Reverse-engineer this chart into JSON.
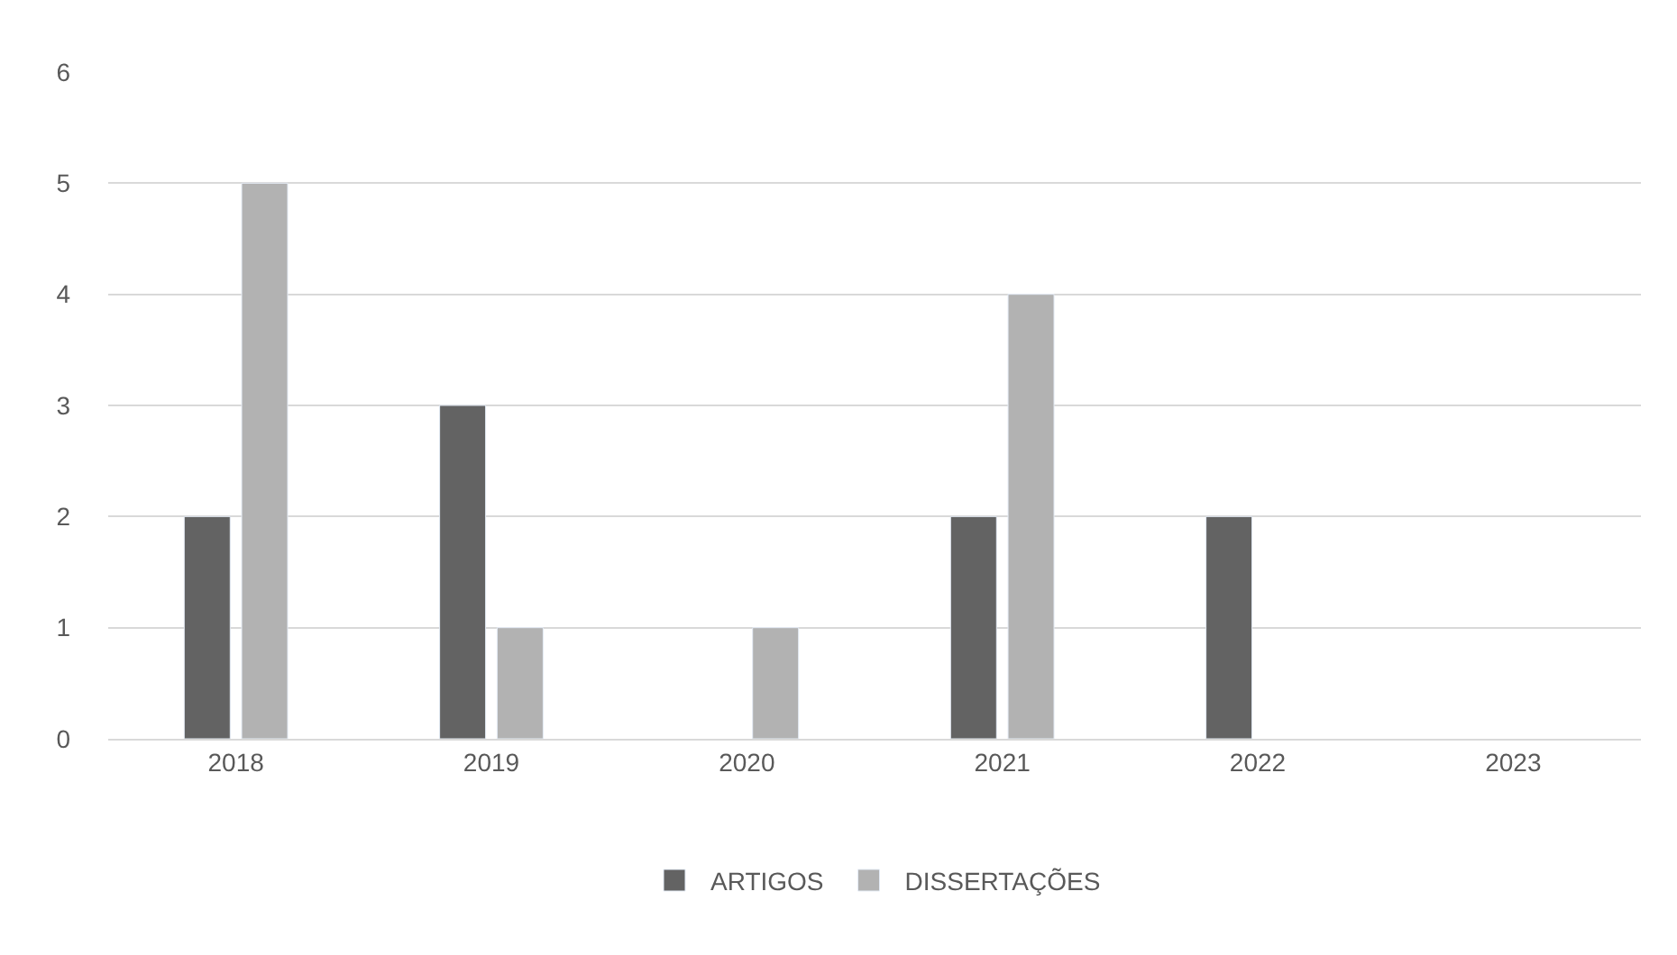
{
  "chart_data": {
    "type": "bar",
    "categories": [
      "2018",
      "2019",
      "2020",
      "2021",
      "2022",
      "2023"
    ],
    "series": [
      {
        "name": "ARTIGOS",
        "color": "#636363",
        "values": [
          2,
          3,
          null,
          2,
          2,
          null
        ]
      },
      {
        "name": "DISSERTAÇÕES",
        "color": "#b2b2b2",
        "values": [
          5,
          1,
          1,
          4,
          null,
          null
        ]
      }
    ],
    "ylim": [
      0,
      6
    ],
    "yticks": [
      0,
      1,
      2,
      3,
      4,
      5,
      6
    ],
    "grid": "y",
    "legend": "bottom"
  }
}
